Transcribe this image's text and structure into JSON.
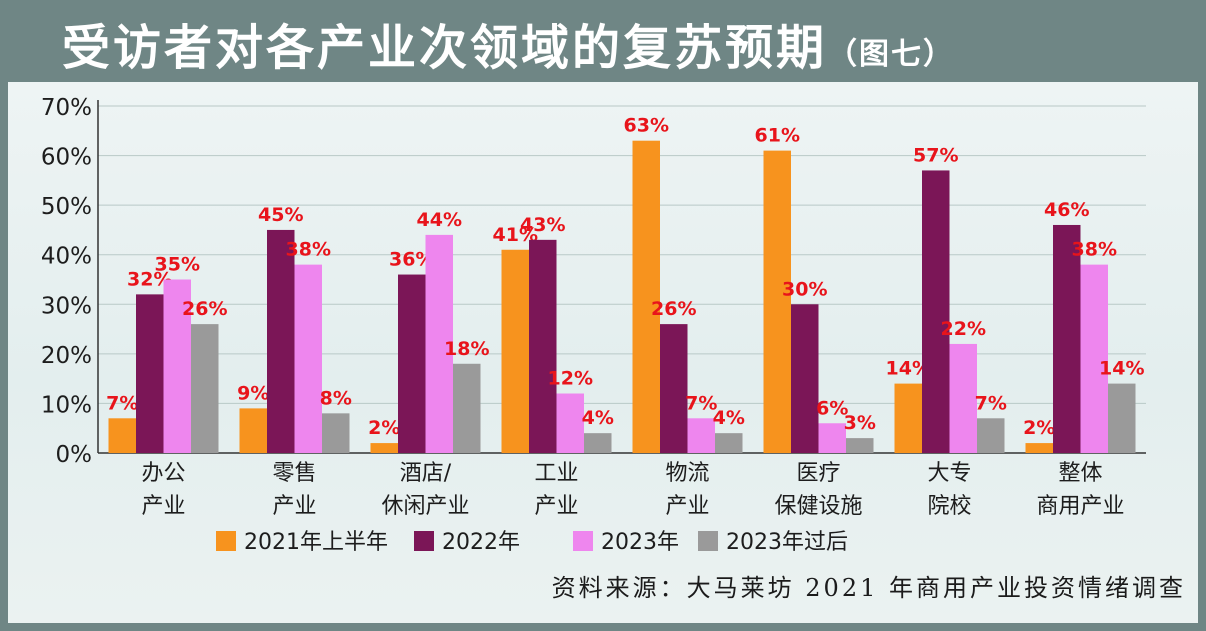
{
  "title": "受访者对各产业次领域的复苏预期",
  "title_suffix": "（图七）",
  "source": "资料来源：大马莱坊 2021 年商用产业投资情绪调查",
  "colors": {
    "background": "#6f8685",
    "panel": "#e9f1f1",
    "data_label": "#e8141b"
  },
  "chart_data": {
    "type": "bar",
    "categories": [
      [
        "办公",
        "产业"
      ],
      [
        "零售",
        "产业"
      ],
      [
        "酒店/",
        "休闲产业"
      ],
      [
        "工业",
        "产业"
      ],
      [
        "物流",
        "产业"
      ],
      [
        "医疗",
        "保健设施"
      ],
      [
        "大专",
        "院校"
      ],
      [
        "整体",
        "商用产业"
      ]
    ],
    "series": [
      {
        "name": "2021年上半年",
        "color": "#f7931e",
        "values": [
          7,
          9,
          2,
          41,
          63,
          61,
          14,
          2
        ]
      },
      {
        "name": "2022年",
        "color": "#7b1657",
        "values": [
          32,
          45,
          36,
          43,
          26,
          30,
          57,
          46
        ]
      },
      {
        "name": "2023年",
        "color": "#ee86ee",
        "values": [
          35,
          38,
          44,
          12,
          7,
          6,
          22,
          38
        ]
      },
      {
        "name": "2023年过后",
        "color": "#9a9a9a",
        "values": [
          26,
          8,
          18,
          4,
          4,
          3,
          7,
          14
        ]
      }
    ],
    "ylim": [
      0,
      70
    ],
    "yticks": [
      "0%",
      "10%",
      "20%",
      "30%",
      "40%",
      "50%",
      "60%",
      "70%"
    ],
    "value_suffix": "%",
    "grid": true,
    "legend_position": "bottom"
  }
}
